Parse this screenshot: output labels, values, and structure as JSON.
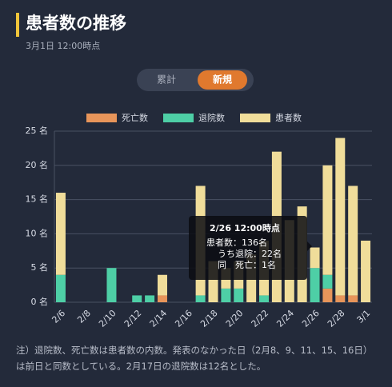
{
  "header": {
    "title": "患者数の推移",
    "subtitle": "3月1日 12:00時点"
  },
  "toggle": [
    "累計",
    "新規"
  ],
  "chart_data": {
    "type": "stacked_bar",
    "categories": [
      "2/6",
      null,
      "2/8",
      null,
      "2/10",
      null,
      "2/12",
      null,
      "2/14",
      null,
      "2/16",
      null,
      "2/18",
      null,
      "2/20",
      null,
      "2/22",
      null,
      "2/24",
      null,
      "2/26",
      null,
      "2/28",
      null,
      "3/1"
    ],
    "series": [
      {
        "name": "死亡数",
        "color": "#e8955a",
        "values": [
          0,
          0,
          0,
          0,
          0,
          0,
          0,
          0,
          1,
          0,
          0,
          0,
          0,
          0,
          0,
          0,
          0,
          0,
          0,
          0,
          0,
          2,
          1,
          1,
          0
        ]
      },
      {
        "name": "退院数",
        "color": "#4ecfa6",
        "values": [
          4,
          0,
          0,
          0,
          5,
          0,
          1,
          1,
          0,
          0,
          0,
          1,
          0,
          2,
          2,
          0,
          1,
          0,
          0,
          0,
          5,
          2,
          0,
          0,
          0
        ]
      },
      {
        "name": "患者数",
        "color": "#f0dd9a",
        "values": [
          12,
          0,
          0,
          0,
          0,
          0,
          0,
          0,
          3,
          0,
          0,
          16,
          6,
          3,
          4,
          7,
          8,
          22,
          12,
          14,
          3,
          16,
          23,
          16,
          9
        ]
      }
    ],
    "ylim": [
      0,
      25
    ],
    "yticks": [
      {
        "value": 0,
        "label": "0 名"
      },
      {
        "value": 5,
        "label": "5 名"
      },
      {
        "value": 10,
        "label": "10 名"
      },
      {
        "value": 15,
        "label": "15 名"
      },
      {
        "value": 20,
        "label": "20 名"
      },
      {
        "value": 25,
        "label": "25 名"
      }
    ],
    "grid": true,
    "legend": "top"
  },
  "tooltip": {
    "title": "2/26 12:00時点",
    "lines": [
      "患者数：136名",
      "うち退院：22名",
      "同　死亡：1名"
    ]
  },
  "note": "注）退院数、死亡数は患者数の内数。発表のなかった日（2月8、9、11、15、16日）は前日と同数としている。2月17日の退院数は12名とした。"
}
